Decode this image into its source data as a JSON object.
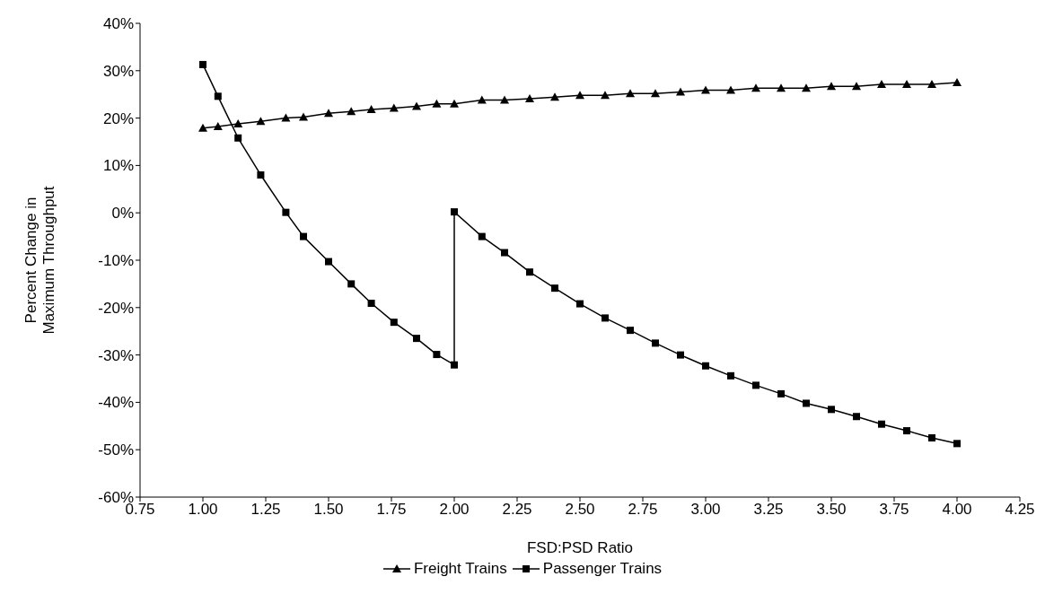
{
  "chart_data": {
    "type": "line",
    "xlabel": "FSD:PSD Ratio",
    "ylabel": "Percent Change in Maximum Throughput",
    "xlim": [
      0.75,
      4.25
    ],
    "xticks": [
      {
        "value": 0.75,
        "label": "0.75"
      },
      {
        "value": 1,
        "label": "1.00"
      },
      {
        "value": 1.25,
        "label": "1.25"
      },
      {
        "value": 1.5,
        "label": "1.50"
      },
      {
        "value": 1.75,
        "label": "1.75"
      },
      {
        "value": 2,
        "label": "2.00"
      },
      {
        "value": 2.25,
        "label": "2.25"
      },
      {
        "value": 2.5,
        "label": "2.50"
      },
      {
        "value": 2.75,
        "label": "2.75"
      },
      {
        "value": 3,
        "label": "3.00"
      },
      {
        "value": 3.25,
        "label": "3.25"
      },
      {
        "value": 3.5,
        "label": "3.50"
      },
      {
        "value": 3.75,
        "label": "3.75"
      },
      {
        "value": 4,
        "label": "4.00"
      },
      {
        "value": 4.25,
        "label": "4.25"
      }
    ],
    "ylim": [
      -60,
      40
    ],
    "yticks": [
      {
        "value": -60,
        "label": "-60%"
      },
      {
        "value": -50,
        "label": "-50%"
      },
      {
        "value": -40,
        "label": "-40%"
      },
      {
        "value": -30,
        "label": "-30%"
      },
      {
        "value": -20,
        "label": "-20%"
      },
      {
        "value": -10,
        "label": "-10%"
      },
      {
        "value": 0,
        "label": "0%"
      },
      {
        "value": 10,
        "label": "10%"
      },
      {
        "value": 20,
        "label": "20%"
      },
      {
        "value": 30,
        "label": "30%"
      },
      {
        "value": 40,
        "label": "40%"
      }
    ],
    "grid": false,
    "legend": "bottom",
    "line_style": "solid",
    "series": [
      {
        "name": "Freight Trains",
        "color": "#000000",
        "marker": "triangle",
        "x": [
          1.0,
          1.06,
          1.14,
          1.23,
          1.33,
          1.4,
          1.5,
          1.59,
          1.67,
          1.76,
          1.85,
          1.93,
          2.0,
          2.11,
          2.2,
          2.3,
          2.4,
          2.5,
          2.6,
          2.7,
          2.8,
          2.9,
          3.0,
          3.1,
          3.2,
          3.3,
          3.4,
          3.5,
          3.6,
          3.7,
          3.8,
          3.9,
          4.0
        ],
        "values": [
          17.9,
          18.2,
          18.8,
          19.3,
          20.0,
          20.2,
          21.0,
          21.4,
          21.8,
          22.1,
          22.5,
          23.0,
          23.0,
          23.8,
          23.8,
          24.1,
          24.4,
          24.8,
          24.8,
          25.2,
          25.2,
          25.5,
          25.9,
          25.9,
          26.3,
          26.3,
          26.3,
          26.7,
          26.7,
          27.1,
          27.1,
          27.1,
          27.5
        ]
      },
      {
        "name": "Passenger Trains",
        "color": "#000000",
        "marker": "square",
        "x": [
          1.0,
          1.06,
          1.14,
          1.23,
          1.33,
          1.4,
          1.5,
          1.59,
          1.67,
          1.76,
          1.85,
          1.93,
          2.0,
          2.0,
          2.11,
          2.2,
          2.3,
          2.4,
          2.5,
          2.6,
          2.7,
          2.8,
          2.9,
          3.0,
          3.1,
          3.2,
          3.3,
          3.4,
          3.5,
          3.6,
          3.7,
          3.8,
          3.9,
          4.0
        ],
        "values": [
          31.3,
          24.6,
          15.8,
          8.0,
          0.1,
          -5.0,
          -10.3,
          -15.0,
          -19.1,
          -23.1,
          -26.5,
          -29.9,
          -32.1,
          0.2,
          -5.0,
          -8.4,
          -12.5,
          -15.9,
          -19.2,
          -22.2,
          -24.8,
          -27.5,
          -30.0,
          -32.3,
          -34.4,
          -36.4,
          -38.2,
          -40.2,
          -41.5,
          -43.0,
          -44.6,
          -46.0,
          -47.5,
          -48.7
        ]
      }
    ]
  }
}
